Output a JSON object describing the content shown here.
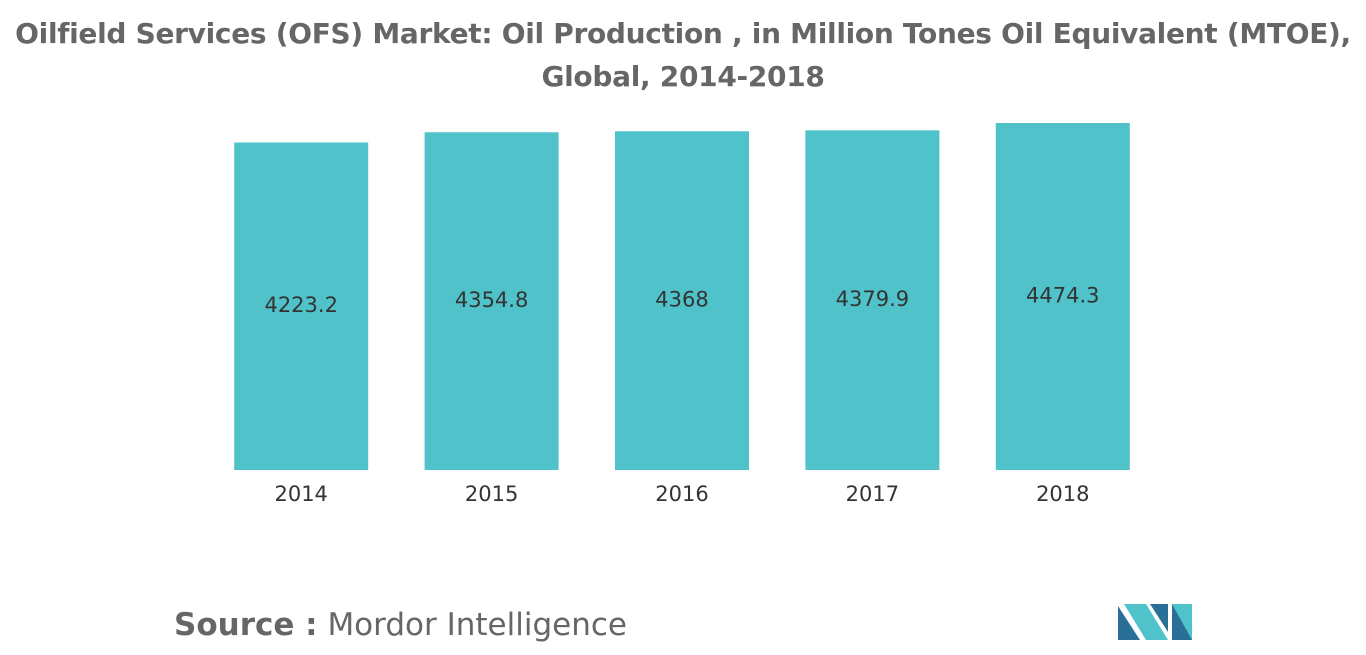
{
  "chart_data": {
    "type": "bar",
    "title": "Oilfield Services (OFS) Market: Oil Production , in Million Tones Oil Equivalent (MTOE), Global, 2014-2018",
    "categories": [
      "2014",
      "2015",
      "2016",
      "2017",
      "2018"
    ],
    "values": [
      4223.2,
      4354.8,
      4368,
      4379.9,
      4474.3
    ],
    "color": "#4fc3c9",
    "source_label": "Source :",
    "source": "Mordor Intelligence"
  }
}
